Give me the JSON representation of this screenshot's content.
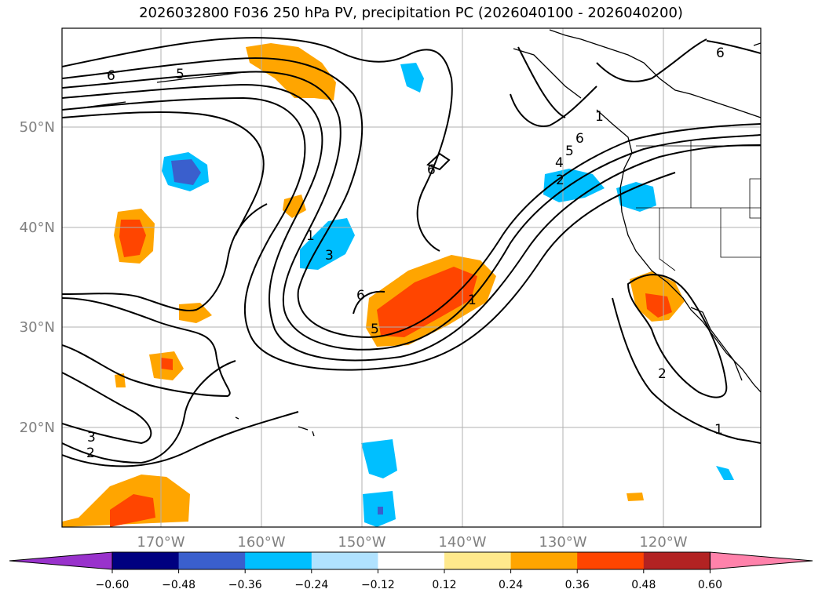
{
  "title": "2026032800 F036 250 hPa PV, precipitation PC (2026040100 - 2026040200)",
  "lon_ticks": [
    "170°W",
    "160°W",
    "150°W",
    "140°W",
    "130°W",
    "120°W"
  ],
  "lat_ticks": [
    "50°N",
    "40°N",
    "30°N",
    "20°N"
  ],
  "contour_labels": [
    "6",
    "5",
    "6",
    "1",
    "3",
    "6",
    "5",
    "1",
    "6",
    "5",
    "4",
    "2",
    "1",
    "3",
    "2",
    "2",
    "1",
    "6"
  ],
  "colorbar": {
    "tick_labels": [
      "−0.60",
      "−0.48",
      "−0.36",
      "−0.24",
      "−0.12",
      "0.12",
      "0.24",
      "0.36",
      "0.48",
      "0.60"
    ],
    "colors": [
      "#9932cc",
      "#000080",
      "#3a5fcd",
      "#00bfff",
      "#b0e2ff",
      "#ffffff",
      "#ffe98c",
      "#ffa500",
      "#ff4500",
      "#b22222",
      "#ff82ab"
    ]
  }
}
